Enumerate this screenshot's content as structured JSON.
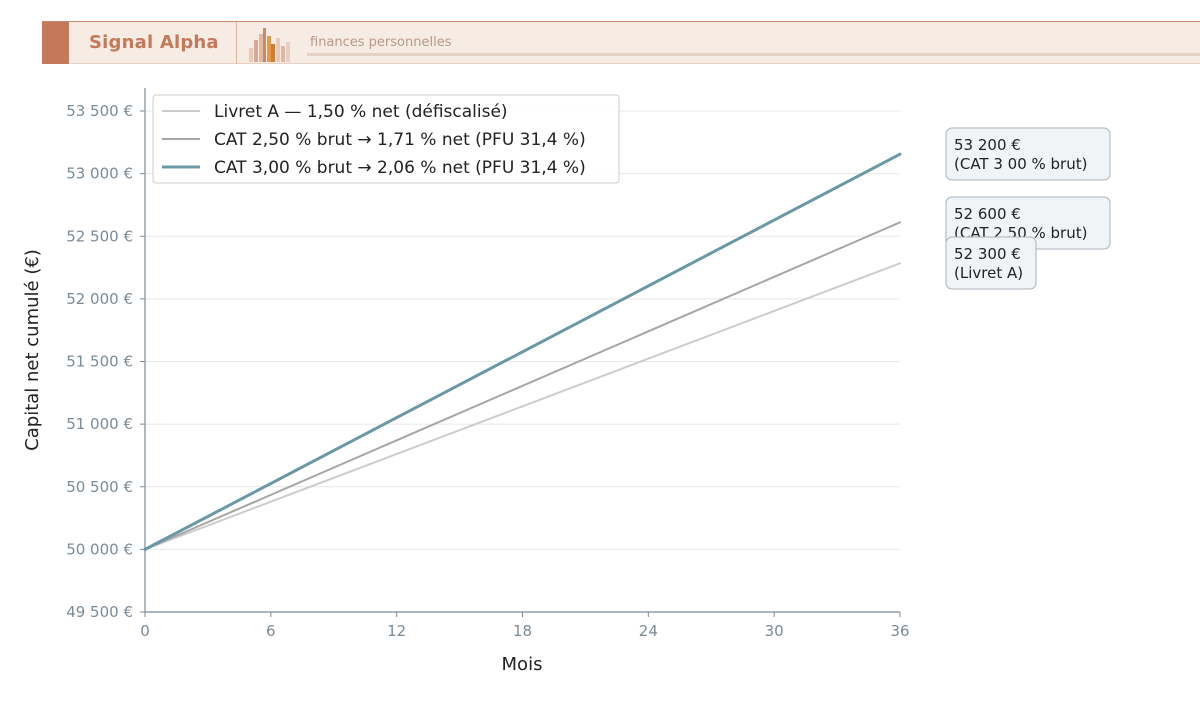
{
  "header": {
    "brand": "Signal Alpha",
    "tagline": "finances personnelles",
    "accent_color": "#c47a5a",
    "background_color": "#f7ece4"
  },
  "chart_data": {
    "type": "line",
    "title": "",
    "xlabel": "Mois",
    "ylabel": "Capital net cumulé (€)",
    "x": [
      0,
      36
    ],
    "xlim": [
      0,
      36
    ],
    "ylim": [
      49500,
      53500
    ],
    "x_ticks": [
      0,
      6,
      12,
      18,
      24,
      30,
      36
    ],
    "x_tick_labels": [
      "0",
      "6",
      "12",
      "18",
      "24",
      "30",
      "36"
    ],
    "y_ticks": [
      49500,
      50000,
      50500,
      51000,
      51500,
      52000,
      52500,
      53000,
      53500
    ],
    "y_tick_labels": [
      "49 500 €",
      "50 000 €",
      "50 500 €",
      "51 000 €",
      "51 500 €",
      "52 000 €",
      "52 500 €",
      "53 000 €",
      "53 500 €"
    ],
    "grid": "horizontal",
    "legend_position": "top-left",
    "series": [
      {
        "name": "Livret A — 1,50 % net (défiscalisé)",
        "color": "#cccccc",
        "stroke_width": 2,
        "values": [
          50000,
          52284
        ]
      },
      {
        "name": "CAT 2,50 % brut → 1,71 % net (PFU 31,4 %)",
        "color": "#a6a6a6",
        "stroke_width": 2,
        "values": [
          50000,
          52611
        ]
      },
      {
        "name": "CAT 3,00 % brut → 2,06 % net (PFU 31,4 %)",
        "color": "#6b98a6",
        "stroke_width": 3,
        "values": [
          50000,
          53155
        ]
      }
    ],
    "annotations": [
      {
        "lines": [
          "53 200 €",
          "(CAT 3 00 % brut)"
        ],
        "anchor_y": 53155
      },
      {
        "lines": [
          "52 600 €",
          "(CAT 2 50 % brut)"
        ],
        "anchor_y": 52611
      },
      {
        "lines": [
          "52 300 €",
          "(Livret A)"
        ],
        "anchor_y": 52284
      }
    ]
  }
}
